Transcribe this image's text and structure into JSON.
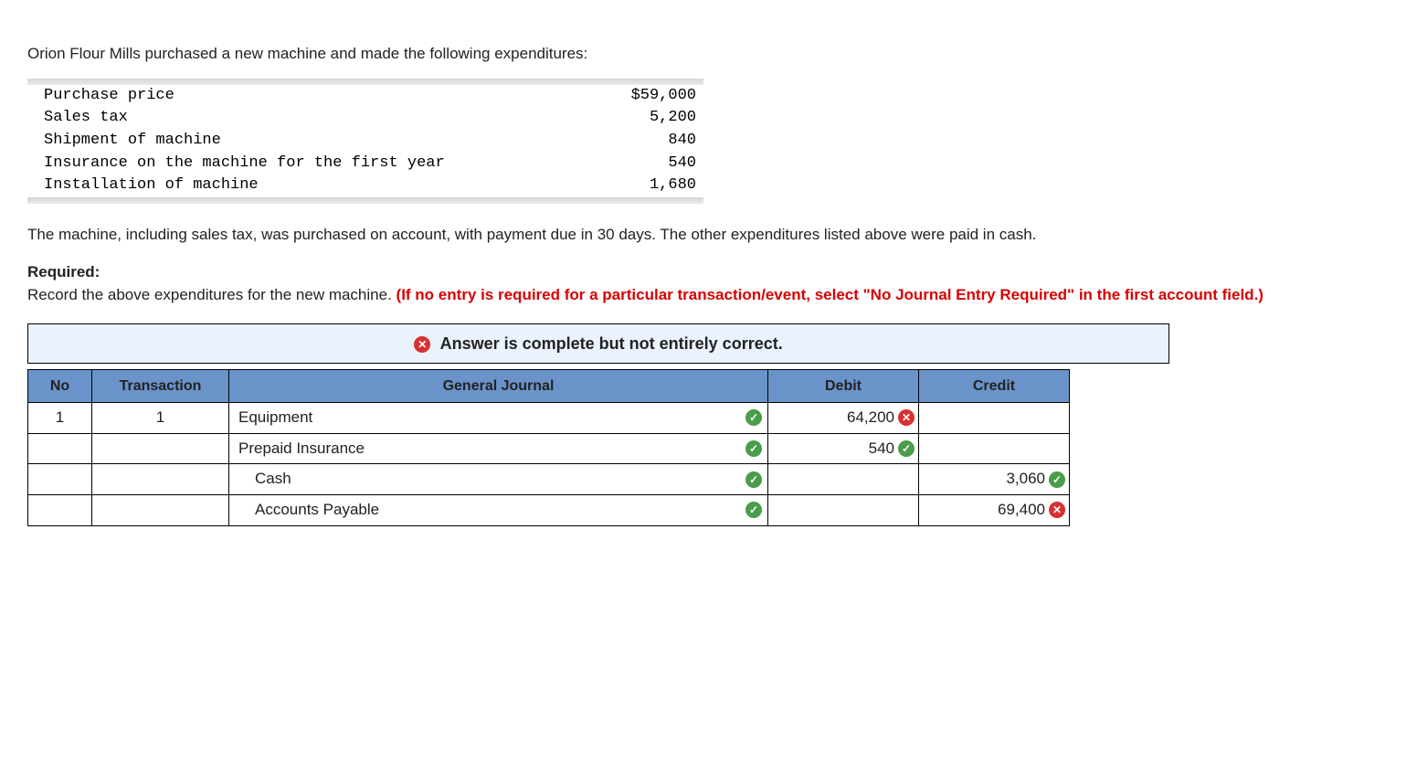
{
  "intro": "Orion Flour Mills purchased a new machine and made the following expenditures:",
  "expenditures": {
    "rows": [
      {
        "label": "Purchase price",
        "value": "$59,000"
      },
      {
        "label": "Sales tax",
        "value": "5,200"
      },
      {
        "label": "Shipment of machine",
        "value": "840"
      },
      {
        "label": "Insurance on the machine for the first year",
        "value": "540"
      },
      {
        "label": "Installation of machine",
        "value": "1,680"
      }
    ]
  },
  "narrative": "The machine, including sales tax, was purchased on account, with payment due in 30 days. The other expenditures listed above were paid in cash.",
  "required_label": "Required:",
  "required_text": "Record the above expenditures for the new machine. ",
  "required_note": "(If no entry is required for a particular transaction/event, select \"No Journal Entry Required\" in the first account field.)",
  "feedback": {
    "icon": "cross",
    "text": "Answer is complete but not entirely correct."
  },
  "journal": {
    "headers": {
      "no": "No",
      "transaction": "Transaction",
      "gj": "General Journal",
      "debit": "Debit",
      "credit": "Credit"
    },
    "rows": [
      {
        "no": "1",
        "transaction": "1",
        "account": "Equipment",
        "indent": false,
        "acct_status": "check",
        "debit": "64,200",
        "debit_status": "cross",
        "credit": "",
        "credit_status": ""
      },
      {
        "no": "",
        "transaction": "",
        "account": "Prepaid Insurance",
        "indent": false,
        "acct_status": "check",
        "debit": "540",
        "debit_status": "check",
        "credit": "",
        "credit_status": ""
      },
      {
        "no": "",
        "transaction": "",
        "account": "Cash",
        "indent": true,
        "acct_status": "check",
        "debit": "",
        "debit_status": "",
        "credit": "3,060",
        "credit_status": "check"
      },
      {
        "no": "",
        "transaction": "",
        "account": "Accounts Payable",
        "indent": true,
        "acct_status": "check",
        "debit": "",
        "debit_status": "",
        "credit": "69,400",
        "credit_status": "cross"
      }
    ]
  },
  "colors": {
    "header_bg": "#6a93c9",
    "banner_bg": "#eaf2fb",
    "red": "#d90000",
    "check": "#4a9d4a",
    "cross": "#d83030"
  }
}
